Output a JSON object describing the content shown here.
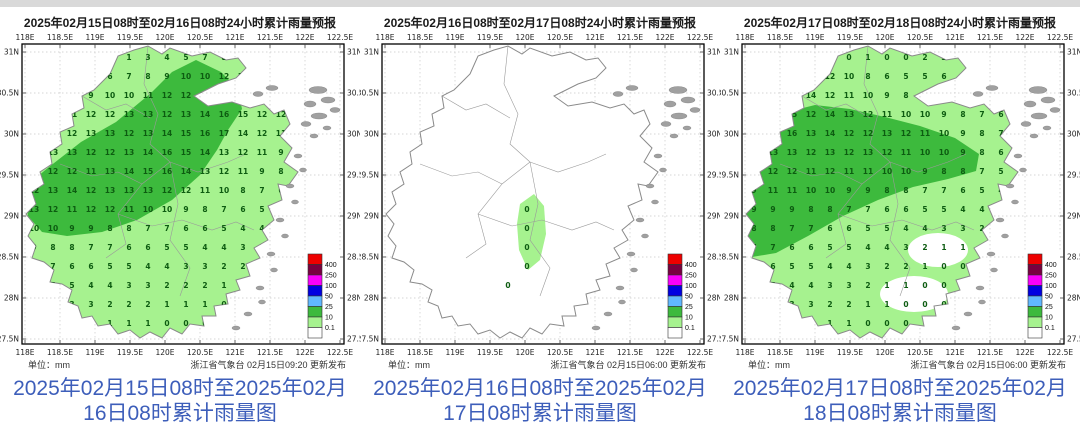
{
  "page": {
    "top_strip_color": "#d9d9d9",
    "background": "#ffffff"
  },
  "colors": {
    "caption_text": "#3d5eba",
    "title_text": "#1a1a1a",
    "axis_text": "#222222",
    "rain_light": "#A6F28F",
    "rain_medium": "#3DBA3D",
    "value_text": "#0d5c11",
    "boundary": "#8a8a8a",
    "island": "#a0a0a0",
    "grid_line": "#c9c9c9",
    "frame": "#000000"
  },
  "axes": {
    "lon_labels": [
      "118E",
      "118.5E",
      "119E",
      "119.5E",
      "120E",
      "120.5E",
      "121E",
      "121.5E",
      "122E",
      "122.5E"
    ],
    "lat_labels": [
      "31N",
      "30.5N",
      "30N",
      "29.5N",
      "29N",
      "28.5N",
      "28N",
      "27.5N"
    ]
  },
  "legend": {
    "threshold_labels": [
      "400",
      "250",
      "100",
      "50",
      "25",
      "10",
      "0.1"
    ],
    "band_colors_top_to_bottom": [
      "#EE0000",
      "#7A0040",
      "#FA00FA",
      "#0000E1",
      "#61B8FF",
      "#3DBA3D",
      "#A6F28F",
      "#FFFFFF"
    ]
  },
  "panels": [
    {
      "title": "2025年02月15日08时至02月16日08时24小时累计雨量预报",
      "unit": "单位：mm",
      "publisher": "浙江省气象台 02月15日09:20 更新发布",
      "caption": "2025年02月15日08时至2025年02月16日08时累计雨量图",
      "base": "rain",
      "blob": "band-nw",
      "white_gaps": false,
      "green_patch": false,
      "values": [
        ". . . . 2 1 3 4 5 7 8 9 10 11 11 12",
        "4 5 5 6 6 7 8 9 10 10 12 12 12 11 12 12",
        "7 8 9 9 10 10 11 12 12 13 13 12 12 12 13 13",
        "9 10 11 12 12 13 13 12 13 14 16 15 12 12 12 11",
        "11 12 12 13 13 12 13 14 15 16 17 14 12 11 10 9",
        "12 13 13 12 12 13 14 16 15 14 13 12 11 9 8 8",
        "11 12 12 11 13 14 15 16 14 13 12 11 9 8 7 6",
        "12 13 14 12 13 13 13 12 12 11 10 8 7 6 5 4",
        "13 12 11 12 12 11 10 10 9 8 7 6 5 4 4 3",
        "10 10 9 9 8 8 7 7 6 6 5 4 4 3 2 2",
        "9 8 8 7 7 6 6 5 5 4 4 3 3 2 1 1",
        "7 7 6 6 5 5 4 4 3 3 2 2 1 1 0 0",
        "5 5 5 4 4 3 3 2 2 2 1 1 0 0 0 .",
        "4 4 3 3 2 2 2 1 1 1 0 0 0 . . .",
        "3 2 2 2 1 1 1 0 0 0 . . . . . ."
      ]
    },
    {
      "title": "2025年02月16日08时至02月17日08时24小时累计雨量预报",
      "unit": "单位：mm",
      "publisher": "浙江省气象台 02月15日06:00 更新发布",
      "caption": "2025年02月16日08时至2025年02月17日08时累计雨量图",
      "base": "none",
      "blob": "none",
      "white_gaps": false,
      "green_patch": true,
      "values": [
        ". . . . . . . . . . . . . . . .",
        ". . . . . . . . . . . . . . . .",
        ". . . . . . . . . . . . . . . .",
        ". . . . . . . . . . . . . . . .",
        ". . . . . . . . . . . . . . . .",
        ". . . . . . . . . . . . . . . .",
        ". . . . . . . . . . . . . . . .",
        ". . . . . . . . . . . . . . . .",
        ". . . . . . . 0 . . . . . . . .",
        ". . . . . . . 0 . . . . . . . .",
        ". . . . . . . 0 . . . . . . . .",
        ". . . . . . . 0 . . . . . . . .",
        ". . . . . . 0 . . . . . . . . .",
        ". . . . . . . . . . . . . . . .",
        ". . . . . . . . . . . . . . . ."
      ]
    },
    {
      "title": "2025年02月17日08时至02月18日08时24小时累计雨量预报",
      "unit": "单位：mm",
      "publisher": "浙江省气象台 02月15日06:00 更新发布",
      "caption": "2025年02月17日08时至2025年02月18日08时累计雨量图",
      "base": "rain",
      "blob": "band-west",
      "white_gaps": true,
      "green_patch": false,
      "values": [
        ". . . . 0 0 1 0 0 2 3 4 4 5 5 5",
        "2 3 4 6 12 10 8 6 5 5 6 6 5 5 4 4",
        "5 8 12 14 12 11 10 9 8 7 6 6 5 5 4 4",
        "8 11 15 12 14 13 12 11 10 10 9 8 7 6 5 4",
        "10 14 16 13 14 12 12 13 12 11 10 9 8 7 5 4",
        "11 13 13 12 13 12 13 12 11 10 10 9 8 6 5 4",
        "10 12 12 11 12 11 11 10 10 9 8 8 7 5 4 3",
        "9 11 11 10 10 9 9 8 8 7 7 6 5 4 3 3",
        "9 9 9 8 8 7 7 6 6 5 5 4 4 3 2 2",
        "8 8 7 7 6 6 5 5 4 4 3 3 2 2 1 1",
        "7 7 6 6 5 5 4 4 3 2 1 1 0 0 1 .",
        "6 6 5 5 4 4 3 2 2 1 0 0 0 0 . .",
        "5 5 4 4 3 3 2 1 1 0 0 0 0 . . .",
        "4 4 3 3 2 2 1 1 0 0 0 . . . . .",
        "3 3 2 2 1 1 0 0 0 . . . . . . ."
      ]
    }
  ]
}
